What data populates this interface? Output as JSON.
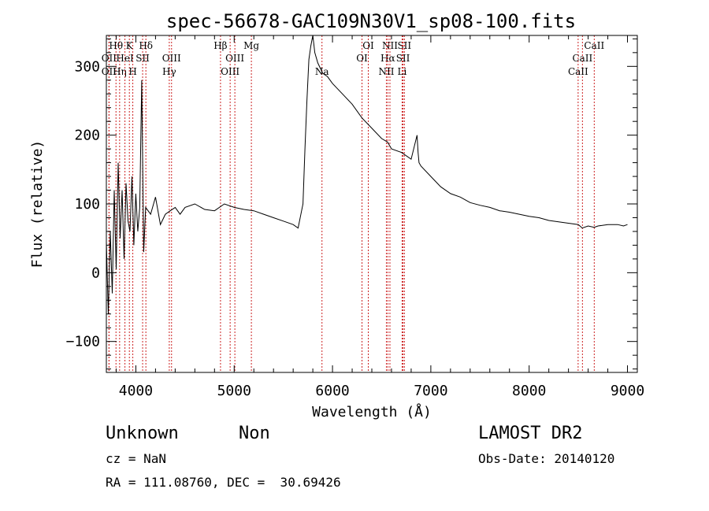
{
  "chart_data": {
    "type": "line",
    "title": "spec-56678-GAC109N30V1_sp08-100.fits",
    "xlabel": "Wavelength (Å)",
    "ylabel": "Flux (relative)",
    "xlim": [
      3700,
      9100
    ],
    "ylim": [
      -145,
      345
    ],
    "xticks": [
      4000,
      5000,
      6000,
      7000,
      8000,
      9000
    ],
    "xtick_labels": [
      "4000",
      "5000",
      "6000",
      "7000",
      "8000",
      "9000"
    ],
    "yticks": [
      -100,
      0,
      100,
      200,
      300
    ],
    "ytick_labels": [
      "−100",
      "0",
      "100",
      "200",
      "300"
    ],
    "grid": false,
    "line_color": "#000000",
    "marker_color": "#cc2222",
    "series": [
      {
        "x": [
          3700,
          3720,
          3740,
          3760,
          3780,
          3800,
          3820,
          3840,
          3860,
          3880,
          3900,
          3920,
          3940,
          3960,
          3980,
          4000,
          4020,
          4040,
          4060,
          4080,
          4100,
          4150,
          4200,
          4250,
          4300,
          4350,
          4400,
          4450,
          4500,
          4600,
          4700,
          4800,
          4900,
          5000,
          5100,
          5200,
          5300,
          5400,
          5500,
          5600,
          5650,
          5700,
          5720,
          5740,
          5760,
          5780,
          5800,
          5820,
          5850,
          5900,
          5950,
          6000,
          6100,
          6200,
          6300,
          6400,
          6500,
          6560,
          6600,
          6700,
          6800,
          6860,
          6870,
          6880,
          6900,
          7000,
          7100,
          7200,
          7300,
          7400,
          7500,
          7600,
          7700,
          7800,
          7900,
          8000,
          8100,
          8200,
          8300,
          8400,
          8500,
          8540,
          8600,
          8662,
          8700,
          8800,
          8900,
          8960,
          9000
        ],
        "y": [
          45,
          -60,
          60,
          -30,
          120,
          5,
          160,
          50,
          120,
          20,
          130,
          75,
          60,
          140,
          40,
          115,
          60,
          95,
          280,
          30,
          95,
          85,
          110,
          70,
          85,
          90,
          95,
          85,
          95,
          100,
          92,
          90,
          100,
          95,
          92,
          90,
          85,
          80,
          75,
          70,
          65,
          100,
          180,
          250,
          310,
          330,
          345,
          320,
          305,
          290,
          285,
          275,
          260,
          245,
          225,
          210,
          195,
          190,
          180,
          175,
          165,
          200,
          175,
          160,
          155,
          140,
          125,
          115,
          110,
          102,
          98,
          95,
          90,
          88,
          85,
          82,
          80,
          76,
          74,
          72,
          70,
          65,
          68,
          66,
          68,
          70,
          70,
          68,
          70
        ]
      }
    ],
    "line_markers": [
      {
        "label": "OII",
        "x": 3727,
        "row": 2
      },
      {
        "label": "Hθ",
        "x": 3798,
        "row": 1
      },
      {
        "label": "OII",
        "x": 3727,
        "row": 3
      },
      {
        "label": "Hη",
        "x": 3835,
        "row": 3
      },
      {
        "label": "K",
        "x": 3934,
        "row": 1
      },
      {
        "label": "HeI",
        "x": 3889,
        "row": 2
      },
      {
        "label": "SII",
        "x": 4069,
        "row": 2
      },
      {
        "label": "H",
        "x": 3969,
        "row": 3
      },
      {
        "label": "Hδ",
        "x": 4102,
        "row": 1
      },
      {
        "label": "OIII",
        "x": 4363,
        "row": 2
      },
      {
        "label": "Hγ",
        "x": 4340,
        "row": 3
      },
      {
        "label": "Hβ",
        "x": 4861,
        "row": 1
      },
      {
        "label": "OIII",
        "x": 5007,
        "row": 2
      },
      {
        "label": "OIII",
        "x": 4959,
        "row": 3
      },
      {
        "label": "Mg",
        "x": 5175,
        "row": 1
      },
      {
        "label": "Na",
        "x": 5893,
        "row": 3
      },
      {
        "label": "OI",
        "x": 6364,
        "row": 1
      },
      {
        "label": "OI",
        "x": 6300,
        "row": 2
      },
      {
        "label": "NII",
        "x": 6584,
        "row": 1
      },
      {
        "label": "Hα",
        "x": 6563,
        "row": 2
      },
      {
        "label": "NII",
        "x": 6548,
        "row": 3
      },
      {
        "label": "SII",
        "x": 6731,
        "row": 1
      },
      {
        "label": "SII",
        "x": 6717,
        "row": 2
      },
      {
        "label": "Li",
        "x": 6708,
        "row": 3
      },
      {
        "label": "CaII",
        "x": 8662,
        "row": 1
      },
      {
        "label": "CaII",
        "x": 8542,
        "row": 2
      },
      {
        "label": "CaII",
        "x": 8498,
        "row": 3
      }
    ]
  },
  "footer": {
    "object_class": "Unknown",
    "subclass": "Non",
    "survey": "LAMOST DR2",
    "cz": "cz = NaN",
    "obs_date": "Obs-Date: 20140120",
    "coords": "RA = 111.08760, DEC =  30.69426"
  }
}
